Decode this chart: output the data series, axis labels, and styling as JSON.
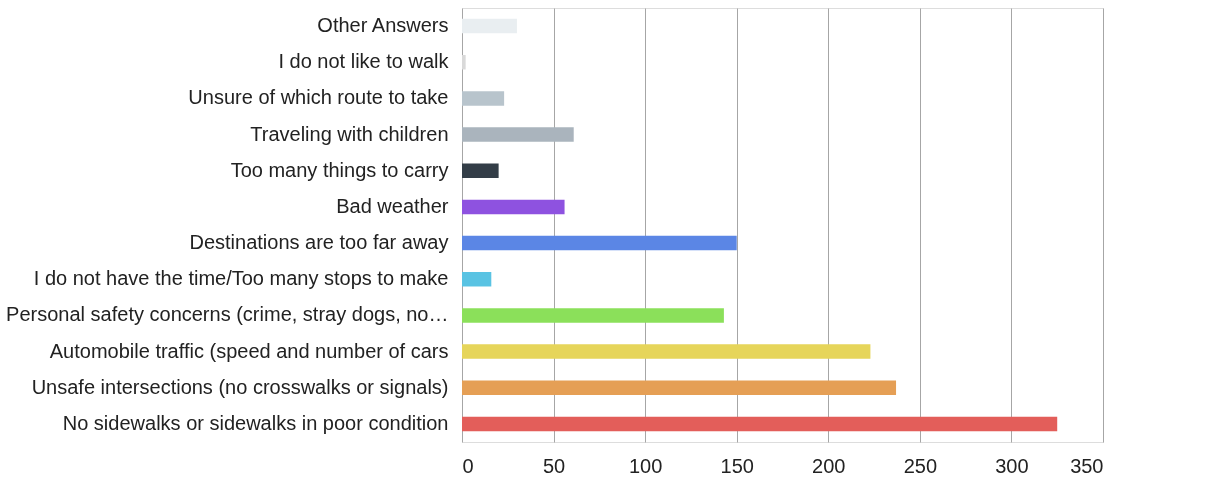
{
  "chart_data": {
    "type": "bar",
    "orientation": "horizontal",
    "categories": [
      "Other Answers",
      "I do not like to walk",
      "Unsure of which route to take",
      "Traveling with children",
      "Too many things to carry",
      "Bad weather",
      "Destinations are too far away",
      "I do not have the time/Too many stops to make",
      "Personal safety concerns (crime, stray dogs, no…",
      "Automobile traffic (speed and number of cars",
      "Unsafe intersections (no crosswalks or signals)",
      "No sidewalks or sidewalks in poor condition"
    ],
    "values": [
      30,
      2,
      23,
      61,
      20,
      56,
      150,
      16,
      143,
      223,
      237,
      325
    ],
    "colors": [
      "#e9eef1",
      "#d9d9d9",
      "#b8c4cc",
      "#aab4bd",
      "#333d47",
      "#8e52e0",
      "#5b86e5",
      "#59c3e3",
      "#8be05a",
      "#e6d55a",
      "#e59f55",
      "#e35e5a"
    ],
    "xlim": [
      0,
      350
    ],
    "xticks": [
      0,
      50,
      100,
      150,
      200,
      250,
      300,
      350
    ],
    "grid": "x",
    "legend": false
  }
}
